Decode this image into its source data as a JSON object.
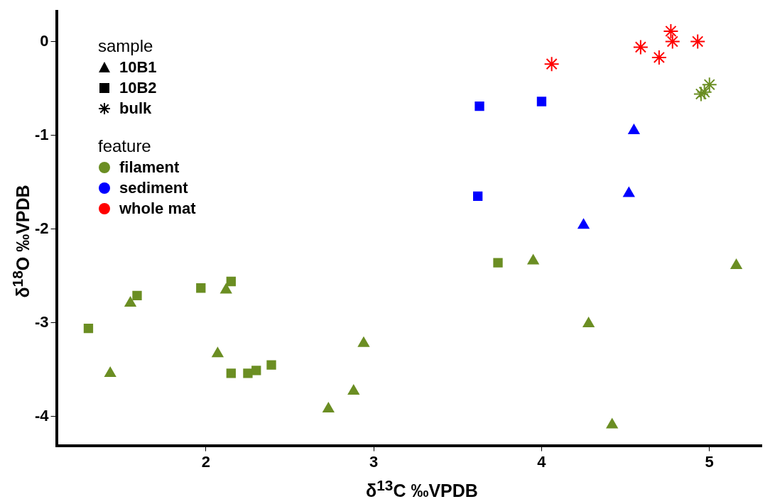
{
  "chart_data": {
    "type": "scatter",
    "xlabel": "δ$^{13}$C ‰VPDB",
    "ylabel": "δ$^{18}$O ‰VPDB",
    "annotations": [
      "sample",
      "10B1",
      "10B2",
      "bulk",
      "feature",
      "filament",
      "sediment",
      "whole mat"
    ],
    "xlim": [
      1.11,
      5.31
    ],
    "xticks": [
      2,
      3,
      4,
      5
    ],
    "ylim": [
      -4.31,
      0.32
    ],
    "yticks": [
      -4,
      -3,
      -2,
      -1,
      0
    ],
    "grid": false,
    "series": [
      {
        "marker": "triangle",
        "color": "#6b8e23",
        "x": [
          1.43,
          1.55,
          2.07,
          2.12,
          2.94,
          2.73,
          2.88,
          3.95,
          4.28,
          4.42,
          5.16
        ],
        "values": [
          -3.54,
          -2.79,
          -3.33,
          -2.65,
          -3.22,
          -3.92,
          -3.73,
          -2.34,
          -3.01,
          -4.09,
          -2.39
        ]
      },
      {
        "marker": "square",
        "color": "#6b8e23",
        "x": [
          1.3,
          1.59,
          1.97,
          2.15,
          2.15,
          2.25,
          2.3,
          2.39,
          3.74
        ],
        "values": [
          -3.06,
          -2.71,
          -2.63,
          -2.56,
          -3.54,
          -3.54,
          -3.51,
          -3.45,
          -2.36
        ]
      },
      {
        "marker": "triangle",
        "color": "#0000ff",
        "x": [
          4.25,
          4.52,
          4.55
        ],
        "values": [
          -1.96,
          -1.62,
          -0.95
        ]
      },
      {
        "marker": "square",
        "color": "#0000ff",
        "x": [
          3.63,
          4.0,
          3.62
        ],
        "values": [
          -0.69,
          -0.64,
          -1.65
        ]
      },
      {
        "marker": "cross",
        "color": "#ff0000",
        "x": [
          4.06,
          4.59,
          4.7,
          4.77,
          4.78,
          4.93
        ],
        "values": [
          -0.24,
          -0.06,
          -0.17,
          0.11,
          0.0,
          0.0
        ]
      },
      {
        "marker": "cross",
        "color": "#6b8e23",
        "x": [
          4.95,
          4.97,
          5.0
        ],
        "values": [
          -0.56,
          -0.54,
          -0.46
        ]
      }
    ]
  }
}
